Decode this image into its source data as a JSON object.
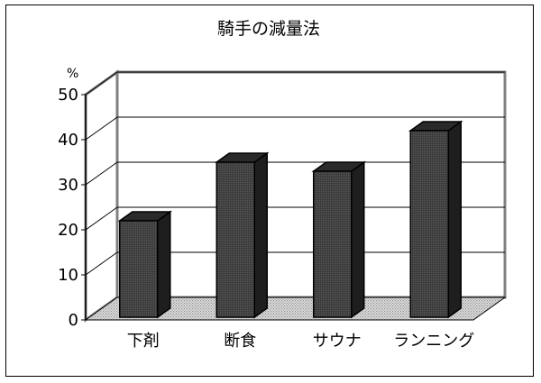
{
  "chart_data": {
    "type": "bar",
    "title": "騎手の減量法",
    "y_unit_label": "%",
    "categories": [
      "下剤",
      "断食",
      "サウナ",
      "ランニング"
    ],
    "values": [
      22,
      35,
      33,
      42
    ],
    "ylim": [
      0,
      50
    ],
    "yticks": [
      0,
      10,
      20,
      30,
      40,
      50
    ],
    "grid": true,
    "legend": "none",
    "colors": {
      "bar_front": "#3a3a3a",
      "bar_top": "#2a2a2a",
      "bar_side": "#1e1e1e",
      "floor": "#c8c8c8",
      "wall_border": "#808080",
      "gridline": "#000000"
    }
  }
}
